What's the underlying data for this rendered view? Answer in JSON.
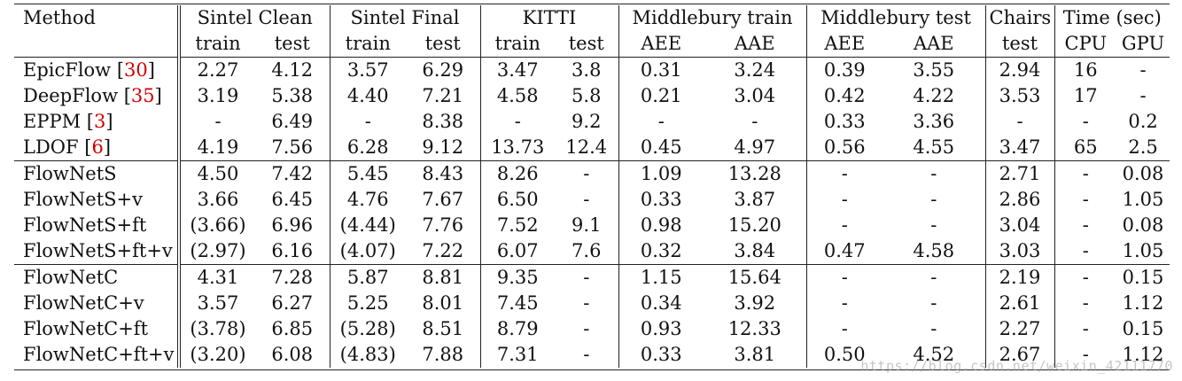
{
  "header": {
    "method": "Method",
    "groups": [
      "Sintel Clean",
      "Sintel Final",
      "KITTI",
      "Middlebury train",
      "Middlebury test",
      "Chairs",
      "Time (sec)"
    ],
    "subheaders": [
      "train",
      "test",
      "train",
      "test",
      "train",
      "test",
      "AEE",
      "AAE",
      "AEE",
      "AAE",
      "test",
      "CPU",
      "GPU"
    ]
  },
  "rows": [
    {
      "method": "EpicFlow",
      "ref": "30",
      "cells": [
        "2.27",
        "4.12",
        "3.57",
        "6.29",
        "3.47",
        "3.8",
        "0.31",
        "3.24",
        "0.39",
        "3.55",
        "2.94",
        "16",
        "-"
      ]
    },
    {
      "method": "DeepFlow",
      "ref": "35",
      "cells": [
        "3.19",
        "5.38",
        "4.40",
        "7.21",
        "4.58",
        "5.8",
        "0.21",
        "3.04",
        "0.42",
        "4.22",
        "3.53",
        "17",
        "-"
      ]
    },
    {
      "method": "EPPM",
      "ref": "3",
      "cells": [
        "-",
        "6.49",
        "-",
        "8.38",
        "-",
        "9.2",
        "-",
        "-",
        "0.33",
        "3.36",
        "-",
        "-",
        "0.2"
      ]
    },
    {
      "method": "LDOF",
      "ref": "6",
      "cells": [
        "4.19",
        "7.56",
        "6.28",
        "9.12",
        "13.73",
        "12.4",
        "0.45",
        "4.97",
        "0.56",
        "4.55",
        "3.47",
        "65",
        "2.5"
      ]
    },
    {
      "method": "FlowNetS",
      "ref": "",
      "cells": [
        "4.50",
        "7.42",
        "5.45",
        "8.43",
        "8.26",
        "-",
        "1.09",
        "13.28",
        "-",
        "-",
        "2.71",
        "-",
        "0.08"
      ]
    },
    {
      "method": "FlowNetS+v",
      "ref": "",
      "cells": [
        "3.66",
        "6.45",
        "4.76",
        "7.67",
        "6.50",
        "-",
        "0.33",
        "3.87",
        "-",
        "-",
        "2.86",
        "-",
        "1.05"
      ]
    },
    {
      "method": "FlowNetS+ft",
      "ref": "",
      "cells": [
        "(3.66)",
        "6.96",
        "(4.44)",
        "7.76",
        "7.52",
        "9.1",
        "0.98",
        "15.20",
        "-",
        "-",
        "3.04",
        "-",
        "0.08"
      ]
    },
    {
      "method": "FlowNetS+ft+v",
      "ref": "",
      "cells": [
        "(2.97)",
        "6.16",
        "(4.07)",
        "7.22",
        "6.07",
        "7.6",
        "0.32",
        "3.84",
        "0.47",
        "4.58",
        "3.03",
        "-",
        "1.05"
      ]
    },
    {
      "method": "FlowNetC",
      "ref": "",
      "cells": [
        "4.31",
        "7.28",
        "5.87",
        "8.81",
        "9.35",
        "-",
        "1.15",
        "15.64",
        "-",
        "-",
        "2.19",
        "-",
        "0.15"
      ]
    },
    {
      "method": "FlowNetC+v",
      "ref": "",
      "cells": [
        "3.57",
        "6.27",
        "5.25",
        "8.01",
        "7.45",
        "-",
        "0.34",
        "3.92",
        "-",
        "-",
        "2.61",
        "-",
        "1.12"
      ]
    },
    {
      "method": "FlowNetC+ft",
      "ref": "",
      "cells": [
        "(3.78)",
        "6.85",
        "(5.28)",
        "8.51",
        "8.79",
        "-",
        "0.93",
        "12.33",
        "-",
        "-",
        "2.27",
        "-",
        "0.15"
      ]
    },
    {
      "method": "FlowNetC+ft+v",
      "ref": "",
      "cells": [
        "(3.20)",
        "6.08",
        "(4.83)",
        "7.88",
        "7.31",
        "-",
        "0.33",
        "3.81",
        "0.50",
        "4.52",
        "2.67",
        "-",
        "1.12"
      ]
    }
  ],
  "group_starts": [
    4,
    8
  ],
  "watermark": "https://blog.csdn.net/weixin_42111770",
  "colors": {
    "ref": "#d40000",
    "rule": "#222222",
    "text": "#111111"
  }
}
